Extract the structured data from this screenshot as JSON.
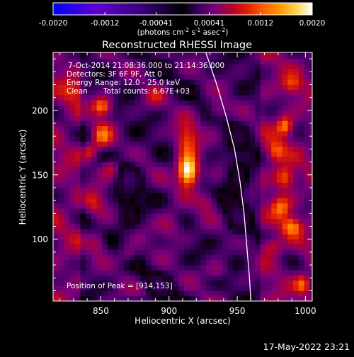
{
  "colors": {
    "background": "#000000",
    "foreground": "#ffffff",
    "colormap_negative": [
      "#0000ff",
      "#6000d0",
      "#3a0080",
      "#000000"
    ],
    "colormap_positive": [
      "#000000",
      "#3a0060",
      "#7a007a",
      "#b00030",
      "#e02000",
      "#ff6000",
      "#ff9800",
      "#ffd24a",
      "#ffffff"
    ]
  },
  "colorbar": {
    "ticks": [
      "-0.0020",
      "-0.0012",
      "-0.00041",
      "0.00041",
      "0.0012",
      "0.0020"
    ],
    "tick_values": [
      -0.002,
      -0.0012,
      -0.00041,
      0.00041,
      0.0012,
      0.002
    ],
    "range": [
      -0.002,
      0.002
    ],
    "units_prefix": "(photons cm",
    "units_exp1": "-2",
    "units_mid": " s",
    "units_exp2": "-1",
    "units_suffix": " asec",
    "units_exp3": "-2",
    "units_close": ")"
  },
  "chart_data": {
    "type": "heatmap",
    "title": "Reconstructed RHESSI Image",
    "xlabel": "Heliocentric X (arcsec)",
    "ylabel": "Heliocentric Y (arcsec)",
    "xlim": [
      815,
      1005
    ],
    "ylim": [
      52,
      245
    ],
    "x_ticks": [
      850,
      900,
      950,
      1000
    ],
    "y_ticks": [
      100,
      150,
      200
    ],
    "annotations": {
      "time_range": "7-Oct-2014 21:08:36.000 to 21:14:36.000",
      "detectors": "Detectors: 3F 6F 9F, Att 0",
      "energy": "Energy Range: 12.0 - 25.0 keV",
      "clean_label": "Clean",
      "total_counts": "Total counts: 6.67E+03",
      "peak": "Position of Peak = [914,153]"
    },
    "peak": [
      914,
      153
    ],
    "limb_curve": [
      [
        927,
        245
      ],
      [
        935,
        220
      ],
      [
        942,
        195
      ],
      [
        948,
        170
      ],
      [
        952,
        145
      ],
      [
        955,
        120
      ],
      [
        957,
        95
      ],
      [
        959,
        70
      ],
      [
        960,
        52
      ]
    ],
    "blobs": [
      {
        "x": 914,
        "y": 153,
        "sx": 5,
        "sy": 8,
        "amp": 1.0
      },
      {
        "x": 913,
        "y": 178,
        "sx": 6,
        "sy": 10,
        "amp": 0.42
      },
      {
        "x": 851,
        "y": 203,
        "sx": 5,
        "sy": 5,
        "amp": 0.55
      },
      {
        "x": 851,
        "y": 180,
        "sx": 5,
        "sy": 7,
        "amp": 0.45
      },
      {
        "x": 842,
        "y": 168,
        "sx": 4,
        "sy": 5,
        "amp": 0.33
      },
      {
        "x": 857,
        "y": 155,
        "sx": 5,
        "sy": 5,
        "amp": 0.3
      },
      {
        "x": 845,
        "y": 128,
        "sx": 6,
        "sy": 7,
        "amp": 0.32
      },
      {
        "x": 848,
        "y": 98,
        "sx": 5,
        "sy": 6,
        "amp": 0.25
      },
      {
        "x": 830,
        "y": 215,
        "sx": 6,
        "sy": 6,
        "amp": 0.25
      },
      {
        "x": 870,
        "y": 88,
        "sx": 5,
        "sy": 5,
        "amp": 0.22
      },
      {
        "x": 900,
        "y": 110,
        "sx": 7,
        "sy": 8,
        "amp": 0.22
      },
      {
        "x": 890,
        "y": 210,
        "sx": 5,
        "sy": 6,
        "amp": 0.22
      },
      {
        "x": 935,
        "y": 200,
        "sx": 5,
        "sy": 5,
        "amp": 0.25
      },
      {
        "x": 928,
        "y": 130,
        "sx": 5,
        "sy": 6,
        "amp": 0.25
      },
      {
        "x": 935,
        "y": 75,
        "sx": 6,
        "sy": 5,
        "amp": 0.2
      },
      {
        "x": 985,
        "y": 188,
        "sx": 4,
        "sy": 5,
        "amp": 0.48
      },
      {
        "x": 978,
        "y": 168,
        "sx": 5,
        "sy": 6,
        "amp": 0.38
      },
      {
        "x": 985,
        "y": 148,
        "sx": 5,
        "sy": 6,
        "amp": 0.45
      },
      {
        "x": 982,
        "y": 125,
        "sx": 5,
        "sy": 6,
        "amp": 0.38
      },
      {
        "x": 990,
        "y": 110,
        "sx": 5,
        "sy": 5,
        "amp": 0.45
      },
      {
        "x": 975,
        "y": 95,
        "sx": 5,
        "sy": 5,
        "amp": 0.3
      },
      {
        "x": 998,
        "y": 65,
        "sx": 4,
        "sy": 5,
        "amp": 0.4
      },
      {
        "x": 990,
        "y": 220,
        "sx": 5,
        "sy": 5,
        "amp": 0.3
      },
      {
        "x": 880,
        "y": 60,
        "sx": 7,
        "sy": 5,
        "amp": 0.18
      },
      {
        "x": 870,
        "y": 135,
        "sx": -6,
        "sy": 20,
        "amp": -0.25
      },
      {
        "x": 950,
        "y": 140,
        "sx": -6,
        "sy": 30,
        "amp": -0.22
      },
      {
        "x": 890,
        "y": 60,
        "sx": -10,
        "sy": 10,
        "amp": -0.2
      }
    ]
  },
  "footer": {
    "timestamp": "17-May-2022 23:21"
  }
}
